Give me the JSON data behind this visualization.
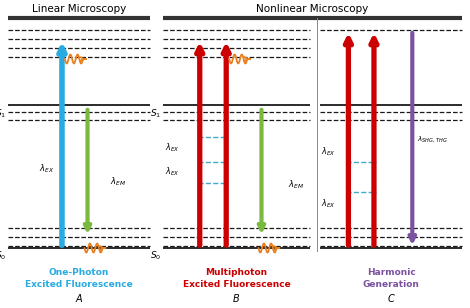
{
  "title_linear": "Linear Microscopy",
  "title_nonlinear": "Nonlinear Microscopy",
  "label_A": "A",
  "label_B": "B",
  "label_C": "C",
  "sub_A": "One-Photon\nExcited Fluorescence",
  "sub_B": "Multiphoton\nExcited Fluorescence",
  "sub_C": "Harmonic\nGeneration",
  "color_cyan": "#29ABE2",
  "color_green": "#7AB840",
  "color_red": "#CC0000",
  "color_purple": "#7B52A0",
  "color_orange": "#E88020",
  "color_cyan_dash": "#44AACC",
  "color_black": "#1A1A1A",
  "bg_color": "#FFFFFF",
  "sub_color": "#333399"
}
